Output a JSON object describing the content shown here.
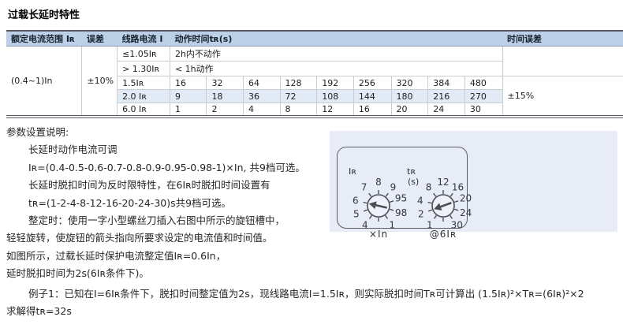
{
  "title": "过载长延时特性",
  "colors": {
    "header_bg": "#bcd0e8",
    "stripe_bg": "#e2eaf6",
    "panel_bg": "#e8ecf7",
    "border_dark": "#555a60",
    "border_light": "#c8cdd4"
  },
  "table": {
    "headers": {
      "rated_range": "额定电流范围 Iʀ",
      "error": "误差",
      "line_current": "线路电流 I",
      "action_time": "动作时间tʀ(s)",
      "time_error": "时间误差"
    },
    "rated_range": "(0.4~1)In",
    "error": "±10%",
    "time_error": "±15%",
    "rows": [
      {
        "current": "≤1.05Iʀ",
        "text": "2h内不动作"
      },
      {
        "current": "> 1.30Iʀ",
        "text": "< 1h动作"
      },
      {
        "current": "1.5Iʀ",
        "values": [
          "16",
          "32",
          "64",
          "128",
          "192",
          "256",
          "320",
          "384",
          "480"
        ]
      },
      {
        "current": "2.0 Iʀ",
        "values": [
          "9",
          "18",
          "36",
          "72",
          "108",
          "144",
          "180",
          "216",
          "270"
        ]
      },
      {
        "current": "6.0 Iʀ",
        "values": [
          "1",
          "2",
          "4",
          "8",
          "12",
          "16",
          "20",
          "24",
          "30"
        ]
      }
    ]
  },
  "notes": {
    "heading": "参数设置说明:",
    "lines": [
      "长延时动作电流可调",
      "Iʀ=(0.4-0.5-0.6-0.7-0.8-0.9-0.95-0.98-1)×In, 共9档可选。",
      "长延时脱扣时间为反时限特性，在6Iʀ时脱扣时间设置有",
      "tʀ=(1-2-4-8-12-16-20-24-30)s共9档可选。",
      "整定时：使用一字小型螺丝刀插入右图中所示的旋钮槽中，",
      "轻轻旋转，使旋钮的箭头指向所要求设定的电流值和时间值。",
      "如图所示，过载长延时保护电流整定值Iʀ=0.6In，",
      "延时脱扣时间为2s(6Iʀ条件下)。",
      "例子1：已知在I=6Iʀ条件下，脱扣时间整定值为2s，现线路电流I=1.5Iʀ，则实际脱扣时间Tʀ可计算出 (1.5Iʀ)²×Tʀ=(6Iʀ)²×2",
      "求解得tʀ=32s"
    ]
  },
  "panel": {
    "dials": [
      {
        "label": "Iʀ",
        "sublabel": "",
        "caption": "×In",
        "pointer": 283,
        "pointed_value": "6",
        "ticks": [
          {
            "v": "8",
            "a": 0
          },
          {
            "v": "9",
            "a": 38
          },
          {
            "v": "95",
            "a": 72
          },
          {
            "v": "98",
            "a": 107
          },
          {
            "v": "1",
            "a": 145
          },
          {
            "v": "",
            "a": 180
          },
          {
            "v": "4",
            "a": 215
          },
          {
            "v": "5",
            "a": 250
          },
          {
            "v": "6",
            "a": 283
          },
          {
            "v": "7",
            "a": 322
          }
        ]
      },
      {
        "label": "tʀ",
        "sublabel": "(s)",
        "caption": "@6Iʀ",
        "pointer": 250,
        "pointed_value": "2",
        "ticks": [
          {
            "v": "12",
            "a": 0
          },
          {
            "v": "16",
            "a": 38
          },
          {
            "v": "20",
            "a": 72
          },
          {
            "v": "24",
            "a": 107
          },
          {
            "v": "30",
            "a": 145
          },
          {
            "v": "",
            "a": 180
          },
          {
            "v": "1",
            "a": 215
          },
          {
            "v": "2",
            "a": 250
          },
          {
            "v": "4",
            "a": 283
          },
          {
            "v": "8",
            "a": 322
          }
        ]
      }
    ]
  }
}
